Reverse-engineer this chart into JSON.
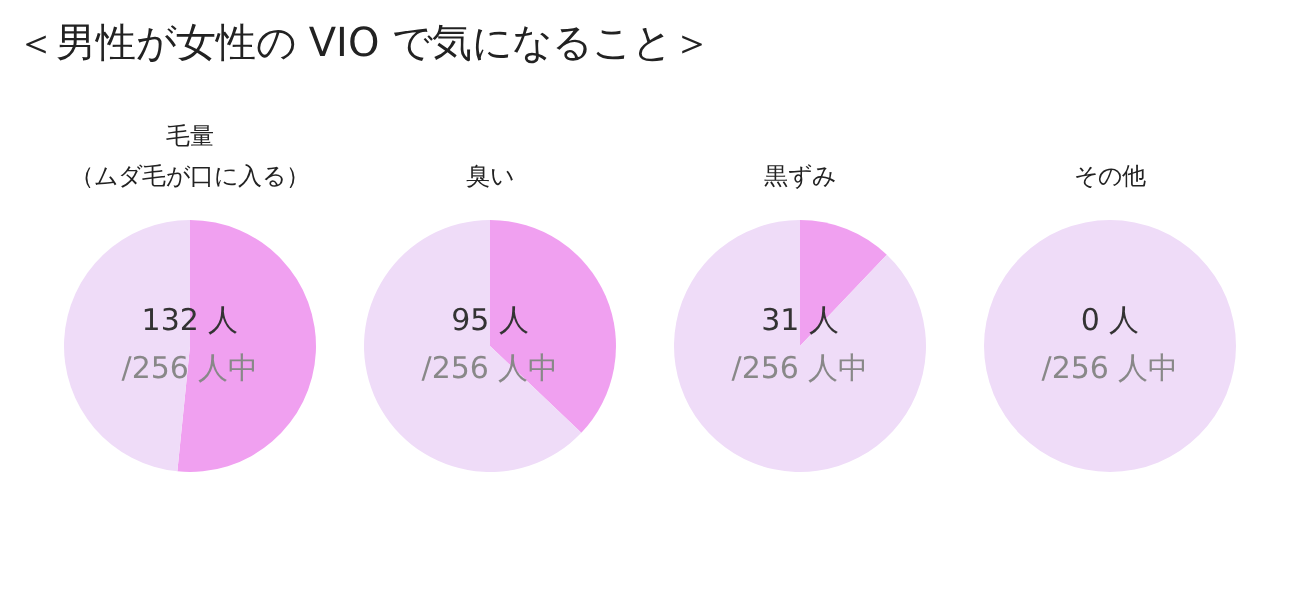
{
  "chart_data": [
    {
      "type": "pie",
      "title": "＜男性が女性の VIO で気になること＞",
      "subtitle": "毛量（ムダ毛が口に入る）",
      "categories": [
        null,
        null
      ],
      "values": [
        51.6,
        48.4
      ],
      "colors": [
        "#f0a0f0",
        "#efdcf8"
      ],
      "annotations": [
        "132 人",
        "/256 人中"
      ]
    },
    {
      "type": "pie",
      "title": "臭い",
      "categories": [
        null,
        null
      ],
      "values": [
        37.1,
        62.9
      ],
      "colors": [
        "#f0a0f0",
        "#efdcf8"
      ],
      "annotations": [
        "95 人",
        "/256 人中"
      ]
    },
    {
      "type": "pie",
      "title": "黒ずみ",
      "categories": [
        null,
        null
      ],
      "values": [
        12.1,
        87.9
      ],
      "colors": [
        "#f0a0f0",
        "#efdcf8"
      ],
      "annotations": [
        "31 人",
        "/256 人中"
      ]
    },
    {
      "type": "pie",
      "title": "その他",
      "categories": [
        null,
        null
      ],
      "values": [
        0,
        100
      ],
      "colors": [
        "#f0a0f0",
        "#efdcf8"
      ],
      "annotations": [
        "0 人",
        "/256 人中"
      ]
    }
  ]
}
